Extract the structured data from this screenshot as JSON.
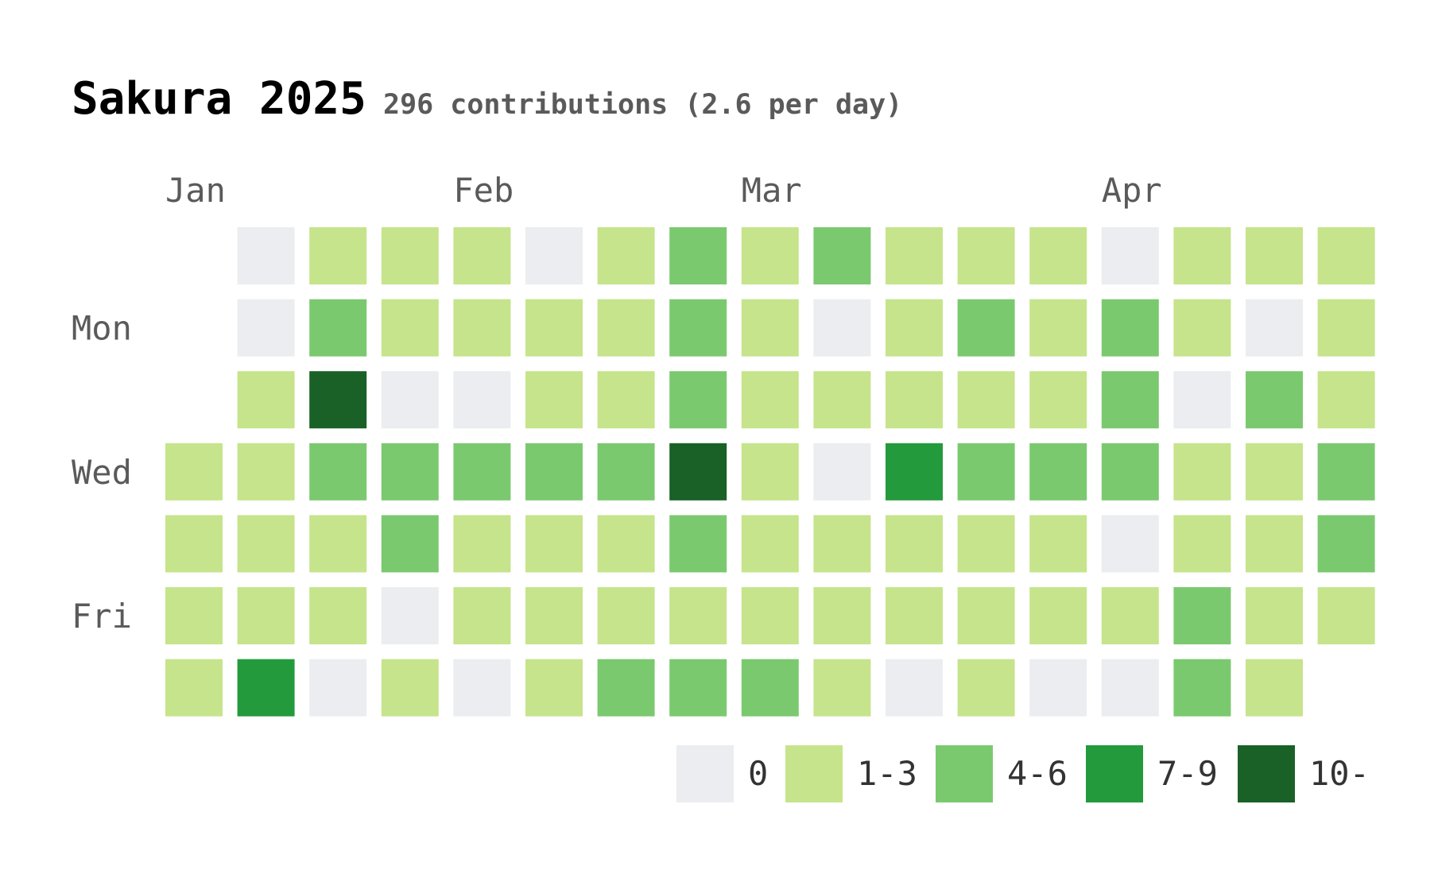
{
  "title": "Sakura 2025",
  "subtitle": "296 contributions (2.6 per day)",
  "chart_data": {
    "type": "heatmap",
    "title": "Sakura 2025",
    "subtitle": "296 contributions (2.6 per day)",
    "total_contributions": 296,
    "per_day_label": "2.6 per day",
    "month_labels": [
      {
        "label": "Jan",
        "week": 0
      },
      {
        "label": "Feb",
        "week": 4
      },
      {
        "label": "Mar",
        "week": 8
      },
      {
        "label": "Apr",
        "week": 13
      }
    ],
    "day_labels": [
      {
        "label": "Mon",
        "row": 1
      },
      {
        "label": "Wed",
        "row": 3
      },
      {
        "label": "Fri",
        "row": 5
      }
    ],
    "levels": [
      {
        "label": "0",
        "color": "#ebedf0"
      },
      {
        "label": "1-3",
        "color": "#c6e48b"
      },
      {
        "label": "4-6",
        "color": "#7bc96f"
      },
      {
        "label": "7-9",
        "color": "#239a3b"
      },
      {
        "label": "10-",
        "color": "#196127"
      }
    ],
    "weeks": [
      [
        null,
        null,
        null,
        1,
        1,
        1,
        1
      ],
      [
        0,
        0,
        1,
        1,
        1,
        1,
        3
      ],
      [
        1,
        2,
        4,
        2,
        1,
        1,
        0
      ],
      [
        1,
        1,
        0,
        2,
        2,
        0,
        1
      ],
      [
        1,
        1,
        0,
        2,
        1,
        1,
        0
      ],
      [
        0,
        1,
        1,
        2,
        1,
        1,
        1
      ],
      [
        1,
        1,
        1,
        2,
        1,
        1,
        2
      ],
      [
        2,
        2,
        2,
        4,
        2,
        1,
        2
      ],
      [
        1,
        1,
        1,
        1,
        1,
        1,
        2
      ],
      [
        2,
        0,
        1,
        0,
        1,
        1,
        1
      ],
      [
        1,
        1,
        1,
        3,
        1,
        1,
        0
      ],
      [
        1,
        2,
        1,
        2,
        1,
        1,
        1
      ],
      [
        1,
        1,
        1,
        2,
        1,
        1,
        0
      ],
      [
        0,
        2,
        2,
        2,
        0,
        1,
        0
      ],
      [
        1,
        1,
        0,
        1,
        1,
        2,
        2
      ],
      [
        1,
        0,
        2,
        1,
        1,
        1,
        1
      ],
      [
        1,
        1,
        1,
        2,
        2,
        1,
        null
      ]
    ]
  }
}
